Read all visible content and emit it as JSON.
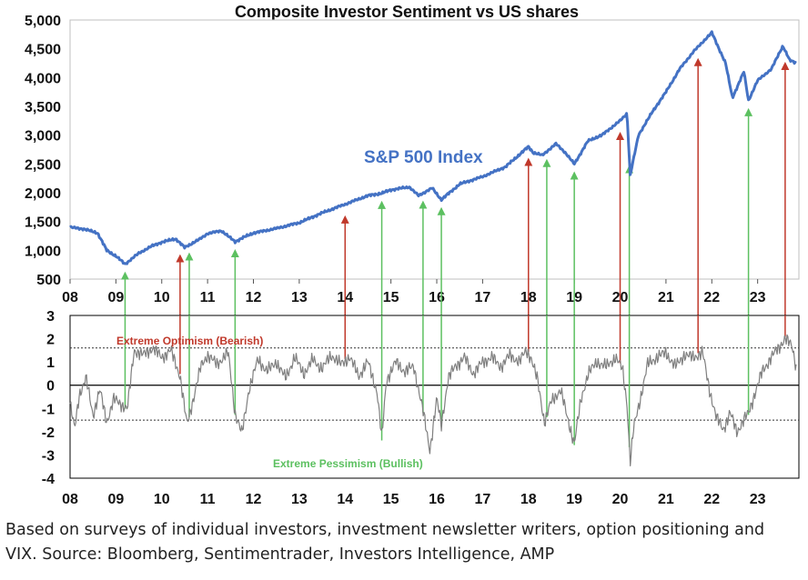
{
  "title": "Composite Investor Sentiment vs US shares",
  "caption": "Based on surveys of individual investors, investment newsletter writers, option positioning and VIX. Source: Bloomberg, Sentimentrader, Investors Intelligence, AMP",
  "colors": {
    "sp500_line": "#4472C4",
    "sentiment_line": "#7f7f7f",
    "optimism": "#c0392b",
    "pessimism": "#5cc060",
    "threshold_line": "#333333",
    "zero_line": "#000000"
  },
  "chart_data": [
    {
      "type": "line",
      "name": "S&P 500 Index",
      "series_label": "S&P 500 Index",
      "xlim": [
        2008,
        2023.9
      ],
      "ylim": [
        500,
        5000
      ],
      "x_tick_values": [
        2008,
        2009,
        2010,
        2011,
        2012,
        2013,
        2014,
        2015,
        2016,
        2017,
        2018,
        2019,
        2020,
        2021,
        2022,
        2023
      ],
      "x_tick_labels": [
        "08",
        "09",
        "10",
        "11",
        "12",
        "13",
        "14",
        "15",
        "16",
        "17",
        "18",
        "19",
        "20",
        "21",
        "22",
        "23"
      ],
      "y_tick_values": [
        500,
        1000,
        1500,
        2000,
        2500,
        3000,
        3500,
        4000,
        4500,
        5000
      ],
      "y_tick_labels": [
        "500",
        "1,000",
        "1,500",
        "2,000",
        "2,500",
        "3,000",
        "3,500",
        "4,000",
        "4,500",
        "5,000"
      ],
      "x": [
        2008.0,
        2008.3,
        2008.6,
        2008.8,
        2009.0,
        2009.2,
        2009.5,
        2009.8,
        2010.0,
        2010.3,
        2010.5,
        2010.8,
        2011.0,
        2011.3,
        2011.6,
        2011.8,
        2012.0,
        2012.5,
        2013.0,
        2013.5,
        2014.0,
        2014.5,
        2014.8,
        2015.0,
        2015.4,
        2015.6,
        2015.9,
        2016.1,
        2016.5,
        2017.0,
        2017.5,
        2018.0,
        2018.1,
        2018.3,
        2018.6,
        2018.8,
        2019.0,
        2019.3,
        2019.6,
        2020.0,
        2020.15,
        2020.22,
        2020.4,
        2020.7,
        2021.0,
        2021.3,
        2021.6,
        2021.9,
        2022.0,
        2022.3,
        2022.45,
        2022.7,
        2022.8,
        2023.0,
        2023.3,
        2023.55,
        2023.7,
        2023.85
      ],
      "values": [
        1400,
        1370,
        1300,
        1000,
        900,
        760,
        950,
        1080,
        1140,
        1200,
        1050,
        1180,
        1290,
        1340,
        1150,
        1230,
        1300,
        1380,
        1480,
        1650,
        1800,
        1950,
        1990,
        2050,
        2100,
        1950,
        2080,
        1880,
        2150,
        2280,
        2450,
        2800,
        2700,
        2650,
        2850,
        2700,
        2500,
        2900,
        3000,
        3250,
        3380,
        2300,
        3000,
        3400,
        3750,
        4150,
        4450,
        4700,
        4780,
        4250,
        3650,
        4100,
        3600,
        3950,
        4150,
        4550,
        4300,
        4250
      ],
      "optimism_markers": [
        2010.4,
        2014.0,
        2018.0,
        2020.0,
        2021.7,
        2023.6
      ],
      "pessimism_markers": [
        2009.2,
        2010.6,
        2011.6,
        2014.8,
        2015.7,
        2016.1,
        2018.4,
        2019.0,
        2020.2,
        2022.8
      ]
    },
    {
      "type": "line",
      "name": "Composite Investor Sentiment",
      "xlim": [
        2008,
        2023.9
      ],
      "ylim": [
        -4,
        3
      ],
      "x_tick_values": [
        2008,
        2009,
        2010,
        2011,
        2012,
        2013,
        2014,
        2015,
        2016,
        2017,
        2018,
        2019,
        2020,
        2021,
        2022,
        2023
      ],
      "x_tick_labels": [
        "08",
        "09",
        "10",
        "11",
        "12",
        "13",
        "14",
        "15",
        "16",
        "17",
        "18",
        "19",
        "20",
        "21",
        "22",
        "23"
      ],
      "y_tick_values": [
        3,
        2,
        1,
        0,
        -1,
        -2,
        -3,
        -4
      ],
      "y_tick_labels": [
        "3",
        "2",
        "1",
        "0",
        "-1",
        "-2",
        "-3",
        "-4"
      ],
      "upper_threshold": 1.6,
      "lower_threshold": -1.5,
      "upper_label": "Extreme Optimism (Bearish)",
      "lower_label": "Extreme Pessimism (Bullish)",
      "x": [
        2008.0,
        2008.1,
        2008.2,
        2008.35,
        2008.5,
        2008.65,
        2008.8,
        2008.95,
        2009.1,
        2009.25,
        2009.4,
        2009.6,
        2009.8,
        2010.0,
        2010.2,
        2010.4,
        2010.55,
        2010.7,
        2010.85,
        2011.0,
        2011.2,
        2011.45,
        2011.6,
        2011.75,
        2011.9,
        2012.1,
        2012.3,
        2012.5,
        2012.7,
        2012.9,
        2013.1,
        2013.3,
        2013.5,
        2013.7,
        2013.9,
        2014.1,
        2014.3,
        2014.5,
        2014.7,
        2014.8,
        2014.9,
        2015.1,
        2015.3,
        2015.5,
        2015.7,
        2015.85,
        2016.0,
        2016.1,
        2016.25,
        2016.4,
        2016.6,
        2016.8,
        2017.0,
        2017.2,
        2017.4,
        2017.6,
        2017.8,
        2017.95,
        2018.05,
        2018.2,
        2018.35,
        2018.5,
        2018.7,
        2018.85,
        2019.0,
        2019.15,
        2019.3,
        2019.5,
        2019.7,
        2019.9,
        2020.05,
        2020.15,
        2020.22,
        2020.3,
        2020.45,
        2020.6,
        2020.8,
        2021.0,
        2021.2,
        2021.4,
        2021.6,
        2021.8,
        2021.95,
        2022.1,
        2022.25,
        2022.4,
        2022.55,
        2022.7,
        2022.8,
        2022.95,
        2023.1,
        2023.3,
        2023.45,
        2023.6,
        2023.75,
        2023.85
      ],
      "values": [
        -0.8,
        -1.9,
        -0.4,
        0.3,
        -1.3,
        -0.2,
        -1.6,
        -0.6,
        -0.8,
        -1.0,
        1.5,
        1.3,
        1.6,
        1.2,
        1.5,
        0.4,
        -1.7,
        -0.5,
        0.8,
        1.3,
        0.9,
        1.4,
        -1.2,
        -2.1,
        -0.2,
        1.1,
        0.6,
        1.0,
        0.3,
        1.2,
        0.5,
        1.1,
        0.7,
        1.3,
        0.9,
        1.2,
        0.4,
        1.0,
        -0.3,
        -2.3,
        0.2,
        1.0,
        0.6,
        0.8,
        -1.1,
        -2.8,
        -0.6,
        -1.7,
        0.3,
        0.8,
        1.2,
        0.5,
        1.0,
        1.2,
        0.8,
        1.3,
        1.0,
        1.5,
        1.2,
        0.2,
        -1.6,
        -0.7,
        -0.2,
        -1.4,
        -2.5,
        -0.6,
        0.5,
        1.0,
        0.8,
        1.2,
        0.7,
        -0.8,
        -3.3,
        -1.8,
        -0.5,
        0.9,
        1.2,
        1.4,
        0.8,
        1.3,
        1.2,
        1.4,
        -0.2,
        -1.4,
        -1.9,
        -1.2,
        -2.0,
        -1.5,
        -1.2,
        -0.3,
        0.6,
        1.2,
        1.6,
        2.0,
        1.7,
        0.7
      ]
    }
  ]
}
